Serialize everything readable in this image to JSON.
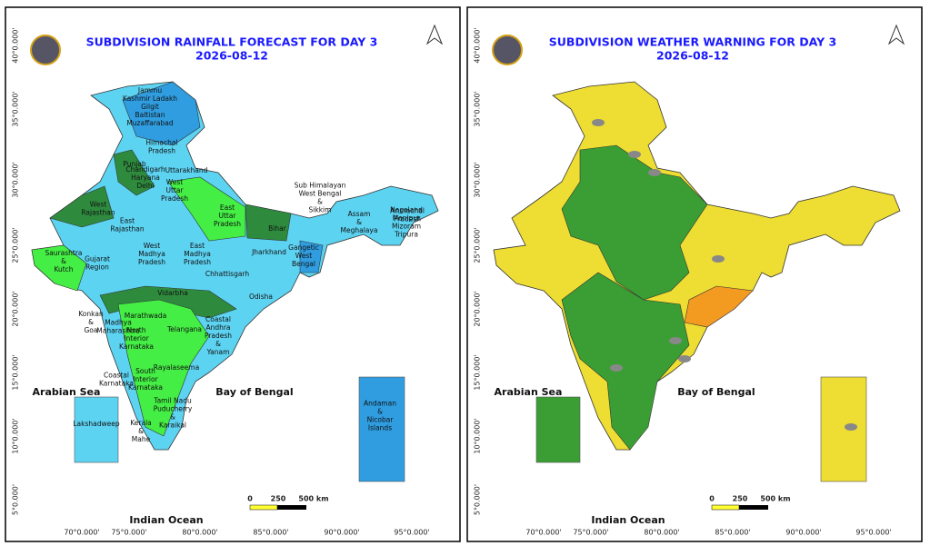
{
  "panels": [
    {
      "title": "SUBDIVISION RAINFALL FORECAST FOR DAY 3",
      "date": "2026-08-12",
      "seas": [
        "Arabian Sea",
        "Bay of Bengal",
        "Indian Ocean"
      ],
      "scale": [
        "0",
        "250",
        "500 km"
      ],
      "lat": [
        "40°0.000'",
        "35°0.000'",
        "30°0.000'",
        "25°0.000'",
        "20°0.000'",
        "15°0.000'",
        "10°0.000'",
        "5°0.000'"
      ],
      "lon": [
        "70°0.000'",
        "75°0.000'",
        "80°0.000'",
        "85°0.000'",
        "90°0.000'",
        "95°0.000'"
      ],
      "regions": [
        [
          "Jammu",
          "Kashmir Ladakh",
          "Gilgit",
          "Baltistan",
          "Muzaffarabad"
        ],
        [
          "Himachal",
          "Pradesh"
        ],
        [
          "Punjab"
        ],
        [
          "Uttarakhand"
        ],
        [
          "Chandigarh",
          "Haryana",
          "Delhi"
        ],
        [
          "West",
          "Uttar",
          "Pradesh"
        ],
        [
          "West",
          "Rajasthan"
        ],
        [
          "East",
          "Uttar",
          "Pradesh"
        ],
        [
          "East",
          "Rajasthan"
        ],
        [
          "Bihar"
        ],
        [
          "Sub Himalayan",
          "West Bengal",
          "&",
          "Sikkim"
        ],
        [
          "Arunachal",
          "Pradesh"
        ],
        [
          "Assam",
          "&",
          "Meghalaya"
        ],
        [
          "Nagaland",
          "Manipur",
          "Mizoram",
          "Tripura"
        ],
        [
          "West",
          "Madhya",
          "Pradesh"
        ],
        [
          "East",
          "Madhya",
          "Pradesh"
        ],
        [
          "Jharkhand"
        ],
        [
          "Gangetic",
          "West",
          "Bengal"
        ],
        [
          "Saurashtra",
          "&",
          "Kutch"
        ],
        [
          "Gujarat",
          "Region"
        ],
        [
          "Chhattisgarh"
        ],
        [
          "Odisha"
        ],
        [
          "Vidarbha"
        ],
        [
          "Konkan",
          "&",
          "Goa"
        ],
        [
          "Marathwada"
        ],
        [
          "Madhya",
          "Maharashtra"
        ],
        [
          "Telangana"
        ],
        [
          "North",
          "Interior",
          "Karnataka"
        ],
        [
          "Coastal",
          "Andhra",
          "Pradesh",
          "&",
          "Yanam"
        ],
        [
          "Rayalaseema"
        ],
        [
          "Coastal",
          "Karnataka"
        ],
        [
          "South",
          "Interior",
          "Karnataka"
        ],
        [
          "Tamil Nadu",
          "Puducherry",
          "&",
          "Karaikal"
        ],
        [
          "Kerala",
          "&",
          "Mahe"
        ],
        [
          "Lakshadweep"
        ],
        [
          "Andaman",
          "&",
          "Nicobar",
          "Islands"
        ]
      ]
    },
    {
      "title": "SUBDIVISION WEATHER WARNING FOR DAY 3",
      "date": "2026-08-12",
      "seas": [
        "Arabian Sea",
        "Bay of Bengal",
        "Indian Ocean"
      ],
      "scale": [
        "0",
        "250",
        "500 km"
      ],
      "lat": [
        "40°0.000'",
        "35°0.000'",
        "30°0.000'",
        "25°0.000'",
        "20°0.000'",
        "15°0.000'",
        "10°0.000'",
        "5°0.000'"
      ],
      "lon": [
        "70°0.000'",
        "75°0.000'",
        "80°0.000'",
        "85°0.000'",
        "90°0.000'",
        "95°0.000'"
      ]
    }
  ]
}
